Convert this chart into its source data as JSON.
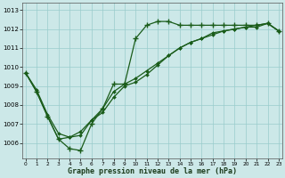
{
  "xlabel": "Graphe pression niveau de la mer (hPa)",
  "bg_color": "#cce8e8",
  "grid_color": "#99cccc",
  "line_color": "#1a5c1a",
  "ylim": [
    1005.2,
    1013.4
  ],
  "yticks": [
    1006,
    1007,
    1008,
    1009,
    1010,
    1011,
    1012,
    1013
  ],
  "xlim": [
    -0.3,
    23.3
  ],
  "xticks": [
    0,
    1,
    2,
    3,
    4,
    5,
    6,
    7,
    8,
    9,
    10,
    11,
    12,
    13,
    14,
    15,
    16,
    17,
    18,
    19,
    20,
    21,
    22,
    23
  ],
  "line_plus_x": [
    0,
    1,
    2,
    3,
    4,
    5,
    6,
    7,
    8,
    9,
    10,
    11,
    12,
    13,
    14,
    15,
    16,
    17,
    18,
    19,
    20,
    21,
    22,
    23
  ],
  "line_plus_y": [
    1009.7,
    1008.7,
    1007.4,
    1006.2,
    1005.7,
    1005.6,
    1007.0,
    1007.8,
    1009.1,
    1009.1,
    1011.5,
    1012.2,
    1012.4,
    1012.4,
    1012.2,
    1012.2,
    1012.2,
    1012.2,
    1012.2,
    1012.2,
    1012.2,
    1012.2,
    1012.3,
    1011.9
  ],
  "line_dia1_x": [
    0,
    1,
    2,
    3,
    4,
    5,
    6,
    7,
    8,
    9,
    10,
    11,
    12,
    13,
    14,
    15,
    16,
    17,
    18,
    19,
    20,
    21,
    22,
    23
  ],
  "line_dia1_y": [
    1009.7,
    1008.8,
    1007.5,
    1006.5,
    1006.3,
    1006.4,
    1007.2,
    1007.8,
    1008.7,
    1009.1,
    1009.4,
    1009.8,
    1010.2,
    1010.6,
    1011.0,
    1011.3,
    1011.5,
    1011.7,
    1011.9,
    1012.0,
    1012.1,
    1012.1,
    1012.3,
    1011.9
  ],
  "line_dia2_x": [
    0,
    1,
    2,
    3,
    4,
    5,
    6,
    7,
    8,
    9,
    10,
    11,
    12,
    13,
    14,
    15,
    16,
    17,
    18,
    19,
    20,
    21,
    22,
    23
  ],
  "line_dia2_y": [
    1009.7,
    1008.7,
    1007.4,
    1006.2,
    1006.3,
    1006.6,
    1007.2,
    1007.6,
    1008.4,
    1009.0,
    1009.2,
    1009.6,
    1010.1,
    1010.6,
    1011.0,
    1011.3,
    1011.5,
    1011.8,
    1011.9,
    1012.0,
    1012.1,
    1012.2,
    1012.3,
    1011.9
  ]
}
